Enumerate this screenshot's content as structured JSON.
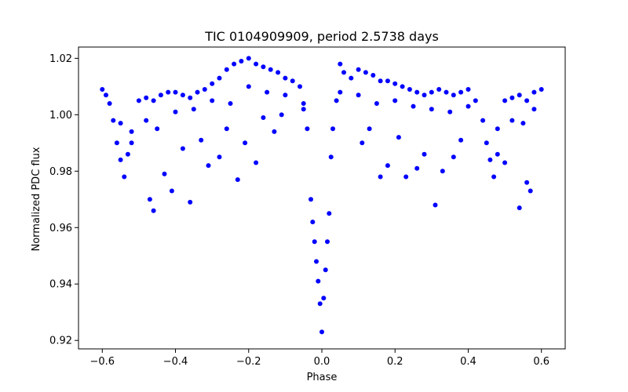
{
  "chart_data": {
    "type": "scatter",
    "title": "TIC 0104909909, period 2.5738 days",
    "xlabel": "Phase",
    "ylabel": "Normalized PDC flux",
    "xlim": [
      -0.665,
      0.665
    ],
    "ylim": [
      0.917,
      1.024
    ],
    "xticks": [
      -0.6,
      -0.4,
      -0.2,
      0.0,
      0.2,
      0.4,
      0.6
    ],
    "xtick_labels": [
      "−0.6",
      "−0.4",
      "−0.2",
      "0.0",
      "0.2",
      "0.4",
      "0.6"
    ],
    "yticks": [
      0.92,
      0.94,
      0.96,
      0.98,
      1.0,
      1.02
    ],
    "ytick_labels": [
      "0.92",
      "0.94",
      "0.96",
      "0.98",
      "1.00",
      "1.02"
    ],
    "grid": false,
    "marker_color": "#0000ff",
    "x": [
      -0.6,
      -0.59,
      -0.58,
      -0.57,
      -0.56,
      -0.55,
      -0.54,
      -0.53,
      -0.52,
      -0.5,
      -0.48,
      -0.46,
      -0.44,
      -0.42,
      -0.4,
      -0.38,
      -0.36,
      -0.34,
      -0.32,
      -0.3,
      -0.28,
      -0.26,
      -0.24,
      -0.22,
      -0.2,
      -0.18,
      -0.16,
      -0.14,
      -0.12,
      -0.1,
      -0.08,
      -0.06,
      -0.05,
      -0.04,
      -0.03,
      -0.025,
      -0.02,
      -0.015,
      -0.01,
      -0.005,
      0.0,
      0.005,
      0.01,
      0.015,
      0.02,
      0.025,
      0.03,
      0.04,
      0.05,
      0.06,
      0.08,
      0.1,
      0.12,
      0.14,
      0.16,
      0.18,
      0.2,
      0.22,
      0.24,
      0.26,
      0.28,
      0.3,
      0.32,
      0.34,
      0.36,
      0.38,
      0.4,
      0.42,
      0.44,
      0.45,
      0.46,
      0.47,
      0.48,
      0.5,
      0.52,
      0.54,
      0.56,
      0.58,
      0.6,
      -0.55,
      -0.52,
      -0.48,
      -0.45,
      -0.4,
      -0.35,
      -0.3,
      -0.25,
      -0.2,
      -0.15,
      -0.1,
      -0.05,
      0.05,
      0.1,
      0.15,
      0.2,
      0.25,
      0.3,
      0.35,
      0.4,
      0.48,
      0.52,
      0.55,
      0.58,
      -0.47,
      -0.43,
      -0.38,
      -0.33,
      -0.28,
      -0.23,
      -0.18,
      -0.13,
      0.13,
      0.18,
      0.23,
      0.28,
      0.33,
      0.38,
      0.5,
      0.56,
      -0.46,
      -0.41,
      -0.36,
      -0.31,
      -0.26,
      -0.21,
      -0.16,
      -0.11,
      0.11,
      0.16,
      0.21,
      0.26,
      0.31,
      0.36,
      0.54,
      0.57
    ],
    "y": [
      1.009,
      1.007,
      1.004,
      0.998,
      0.99,
      0.984,
      0.978,
      0.986,
      0.994,
      1.005,
      1.006,
      1.005,
      1.007,
      1.008,
      1.008,
      1.007,
      1.006,
      1.008,
      1.009,
      1.011,
      1.013,
      1.016,
      1.018,
      1.019,
      1.02,
      1.018,
      1.017,
      1.016,
      1.015,
      1.013,
      1.012,
      1.01,
      1.004,
      0.995,
      0.97,
      0.962,
      0.955,
      0.948,
      0.941,
      0.933,
      0.923,
      0.935,
      0.945,
      0.955,
      0.965,
      0.985,
      0.995,
      1.005,
      1.018,
      1.015,
      1.013,
      1.016,
      1.015,
      1.014,
      1.012,
      1.012,
      1.011,
      1.01,
      1.009,
      1.008,
      1.007,
      1.008,
      1.009,
      1.008,
      1.007,
      1.008,
      1.009,
      1.005,
      0.998,
      0.99,
      0.984,
      0.978,
      0.986,
      1.005,
      1.006,
      1.007,
      1.005,
      1.008,
      1.009,
      0.997,
      0.99,
      0.998,
      0.995,
      1.001,
      1.002,
      1.005,
      1.004,
      1.01,
      1.008,
      1.007,
      1.002,
      1.008,
      1.007,
      1.004,
      1.005,
      1.003,
      1.002,
      1.001,
      1.003,
      0.995,
      0.998,
      0.997,
      1.002,
      0.97,
      0.979,
      0.988,
      0.991,
      0.985,
      0.977,
      0.983,
      0.994,
      0.995,
      0.982,
      0.978,
      0.986,
      0.98,
      0.991,
      0.983,
      0.976,
      0.966,
      0.973,
      0.969,
      0.982,
      0.995,
      0.99,
      0.999,
      1.0,
      0.99,
      0.978,
      0.992,
      0.981,
      0.968,
      0.985,
      0.967,
      0.973
    ]
  }
}
